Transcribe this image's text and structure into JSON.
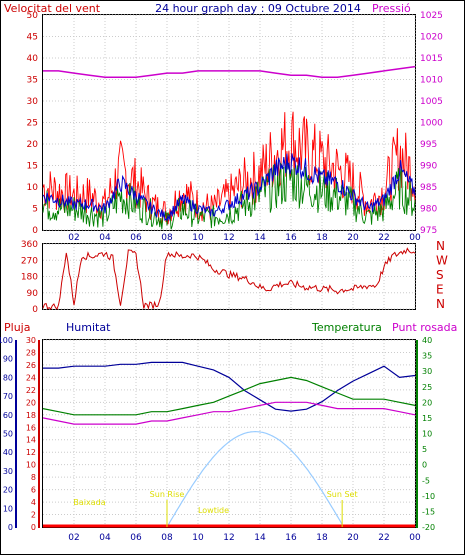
{
  "header": {
    "left_title": "Velocitat del vent",
    "center_title": "24 hour graph day : 09 Octubre 2014",
    "right_title": "Pressió"
  },
  "lower_header": {
    "rain": "Pluja",
    "humidity": "Humitat",
    "temperature": "Temperatura",
    "dewpoint": "Punt rosada"
  },
  "x_axis": {
    "ticks": [
      "02",
      "04",
      "06",
      "08",
      "10",
      "12",
      "14",
      "16",
      "18",
      "20",
      "22",
      "00"
    ]
  },
  "colors": {
    "wind_gust": "#ff0000",
    "wind_avg": "#0000cc",
    "wind_speed": "#008000",
    "pressure": "#cc00cc",
    "direction": "#cc0000",
    "humidity": "#000099",
    "temperature": "#008000",
    "dewpoint": "#cc00cc",
    "solar": "#99ccff",
    "rain": "#ff0000",
    "annotation": "#dddd00"
  },
  "chart_data": [
    {
      "type": "line",
      "title": "Velocitat del vent",
      "y_left": {
        "label": "Velocitat del vent",
        "lim": [
          0,
          50
        ],
        "ticks": [
          "0",
          "5",
          "10",
          "15",
          "20",
          "25",
          "30",
          "35",
          "40",
          "45",
          "50"
        ]
      },
      "y_right": {
        "label": "Pressió",
        "lim": [
          975,
          1025
        ],
        "ticks": [
          "975",
          "980",
          "985",
          "990",
          "995",
          "1000",
          "1005",
          "1010",
          "1015",
          "1020",
          "1025"
        ]
      },
      "x": [
        0,
        1,
        2,
        3,
        4,
        5,
        6,
        7,
        8,
        9,
        10,
        11,
        12,
        13,
        14,
        15,
        16,
        17,
        18,
        19,
        20,
        21,
        22,
        23,
        24
      ],
      "series": [
        {
          "name": "gust",
          "axis": "left",
          "values": [
            10,
            9,
            8,
            8,
            6,
            14,
            11,
            6,
            4,
            9,
            6,
            5,
            8,
            11,
            13,
            18,
            21,
            18,
            16,
            14,
            11,
            6,
            9,
            18,
            12
          ]
        },
        {
          "name": "average",
          "axis": "left",
          "values": [
            8,
            7,
            6,
            6,
            5,
            11,
            8,
            5,
            3,
            7,
            5,
            4,
            6,
            8,
            10,
            14,
            16,
            14,
            12,
            11,
            8,
            5,
            7,
            14,
            9
          ]
        },
        {
          "name": "speed",
          "axis": "left",
          "values": [
            6,
            5,
            5,
            4,
            3,
            8,
            6,
            4,
            2,
            5,
            3,
            3,
            4,
            6,
            8,
            10,
            12,
            10,
            9,
            8,
            6,
            3,
            5,
            10,
            6
          ]
        },
        {
          "name": "Pressió",
          "axis": "right",
          "values": [
            1012,
            1012,
            1011.5,
            1011,
            1010.5,
            1010.5,
            1010.5,
            1011,
            1011.5,
            1011.5,
            1012,
            1012,
            1012,
            1012,
            1012,
            1011.5,
            1011,
            1011,
            1010.5,
            1010.5,
            1011,
            1011.5,
            1012,
            1012.5,
            1013
          ]
        }
      ]
    },
    {
      "type": "line",
      "y_left": {
        "lim": [
          0,
          360
        ],
        "ticks": [
          "0",
          "90",
          "180",
          "270",
          "360"
        ]
      },
      "y_right": {
        "ticks": [
          "N",
          "W",
          "S",
          "E",
          "N"
        ]
      },
      "x": [
        0,
        0.5,
        1,
        1.5,
        2,
        2.5,
        3,
        3.5,
        4,
        4.5,
        5,
        5.5,
        6,
        6.5,
        7,
        7.5,
        8,
        8.5,
        9,
        9.5,
        10,
        10.5,
        11,
        11.5,
        12,
        12.5,
        13,
        13.5,
        14,
        14.5,
        15,
        15.5,
        16,
        16.5,
        17,
        17.5,
        18,
        18.5,
        19,
        19.5,
        20,
        20.5,
        21,
        21.5,
        22,
        22.5,
        23,
        23.5,
        24
      ],
      "series": [
        {
          "name": "direction",
          "values": [
            20,
            15,
            10,
            320,
            30,
            300,
            290,
            300,
            310,
            280,
            30,
            310,
            300,
            20,
            20,
            30,
            310,
            300,
            290,
            300,
            290,
            260,
            220,
            210,
            190,
            180,
            170,
            150,
            120,
            110,
            130,
            140,
            140,
            130,
            120,
            120,
            110,
            110,
            100,
            110,
            110,
            120,
            130,
            130,
            230,
            290,
            310,
            330,
            320
          ]
        }
      ]
    },
    {
      "type": "line",
      "y_left_rain": {
        "label": "Pluja",
        "lim": [
          0,
          30
        ],
        "ticks": [
          "0",
          "2",
          "4",
          "6",
          "8",
          "10",
          "12",
          "14",
          "16",
          "18",
          "20",
          "22",
          "24",
          "26",
          "28",
          "30"
        ]
      },
      "y_left_hum": {
        "label": "Humitat",
        "lim": [
          0,
          100
        ],
        "ticks": [
          "0",
          "10",
          "20",
          "30",
          "40",
          "50",
          "60",
          "70",
          "80",
          "90",
          "100"
        ]
      },
      "y_right": {
        "label": "Temperatura",
        "lim": [
          -20,
          40
        ],
        "ticks": [
          "-20",
          "-15",
          "-10",
          "-5",
          "0",
          "5",
          "10",
          "15",
          "20",
          "25",
          "30",
          "35",
          "40"
        ]
      },
      "x": [
        0,
        1,
        2,
        3,
        4,
        5,
        6,
        7,
        8,
        9,
        10,
        11,
        12,
        13,
        14,
        15,
        16,
        17,
        18,
        19,
        20,
        21,
        22,
        23,
        24
      ],
      "series": [
        {
          "name": "Humitat",
          "axis": "hum",
          "values": [
            85,
            85,
            86,
            86,
            86,
            87,
            87,
            88,
            88,
            88,
            86,
            84,
            80,
            73,
            68,
            63,
            62,
            63,
            67,
            73,
            78,
            82,
            86,
            80,
            81
          ]
        },
        {
          "name": "Temperatura",
          "axis": "right",
          "values": [
            18,
            17,
            16,
            16,
            16,
            16,
            16,
            17,
            17,
            18,
            19,
            20,
            22,
            24,
            26,
            27,
            28,
            27,
            25,
            23,
            21,
            21,
            21,
            20,
            19
          ]
        },
        {
          "name": "Punt rosada",
          "axis": "right",
          "values": [
            15,
            14,
            13,
            13,
            13,
            13,
            13,
            14,
            14,
            15,
            16,
            17,
            17,
            18,
            19,
            20,
            20,
            20,
            19,
            18,
            18,
            18,
            18,
            17,
            16
          ]
        },
        {
          "name": "solar",
          "axis": "hum",
          "values": [
            0,
            0,
            0,
            0,
            0,
            0,
            0,
            0,
            0,
            5,
            20,
            35,
            45,
            50,
            51,
            48,
            42,
            30,
            15,
            4,
            0,
            0,
            0,
            0,
            0
          ]
        },
        {
          "name": "Pluja",
          "axis": "rain",
          "values": [
            0,
            0,
            0,
            0,
            0,
            0,
            0,
            0,
            0,
            0,
            0,
            0,
            0,
            0,
            0,
            0,
            0,
            0,
            0,
            0,
            0,
            0,
            0,
            0,
            0
          ]
        }
      ],
      "annotations": [
        {
          "text": "Baixada",
          "x": 3
        },
        {
          "text": "Sun Rise",
          "x": 8
        },
        {
          "text": "Lowtide",
          "x": 11
        },
        {
          "text": "Sun Set",
          "x": 19.3
        }
      ]
    }
  ]
}
